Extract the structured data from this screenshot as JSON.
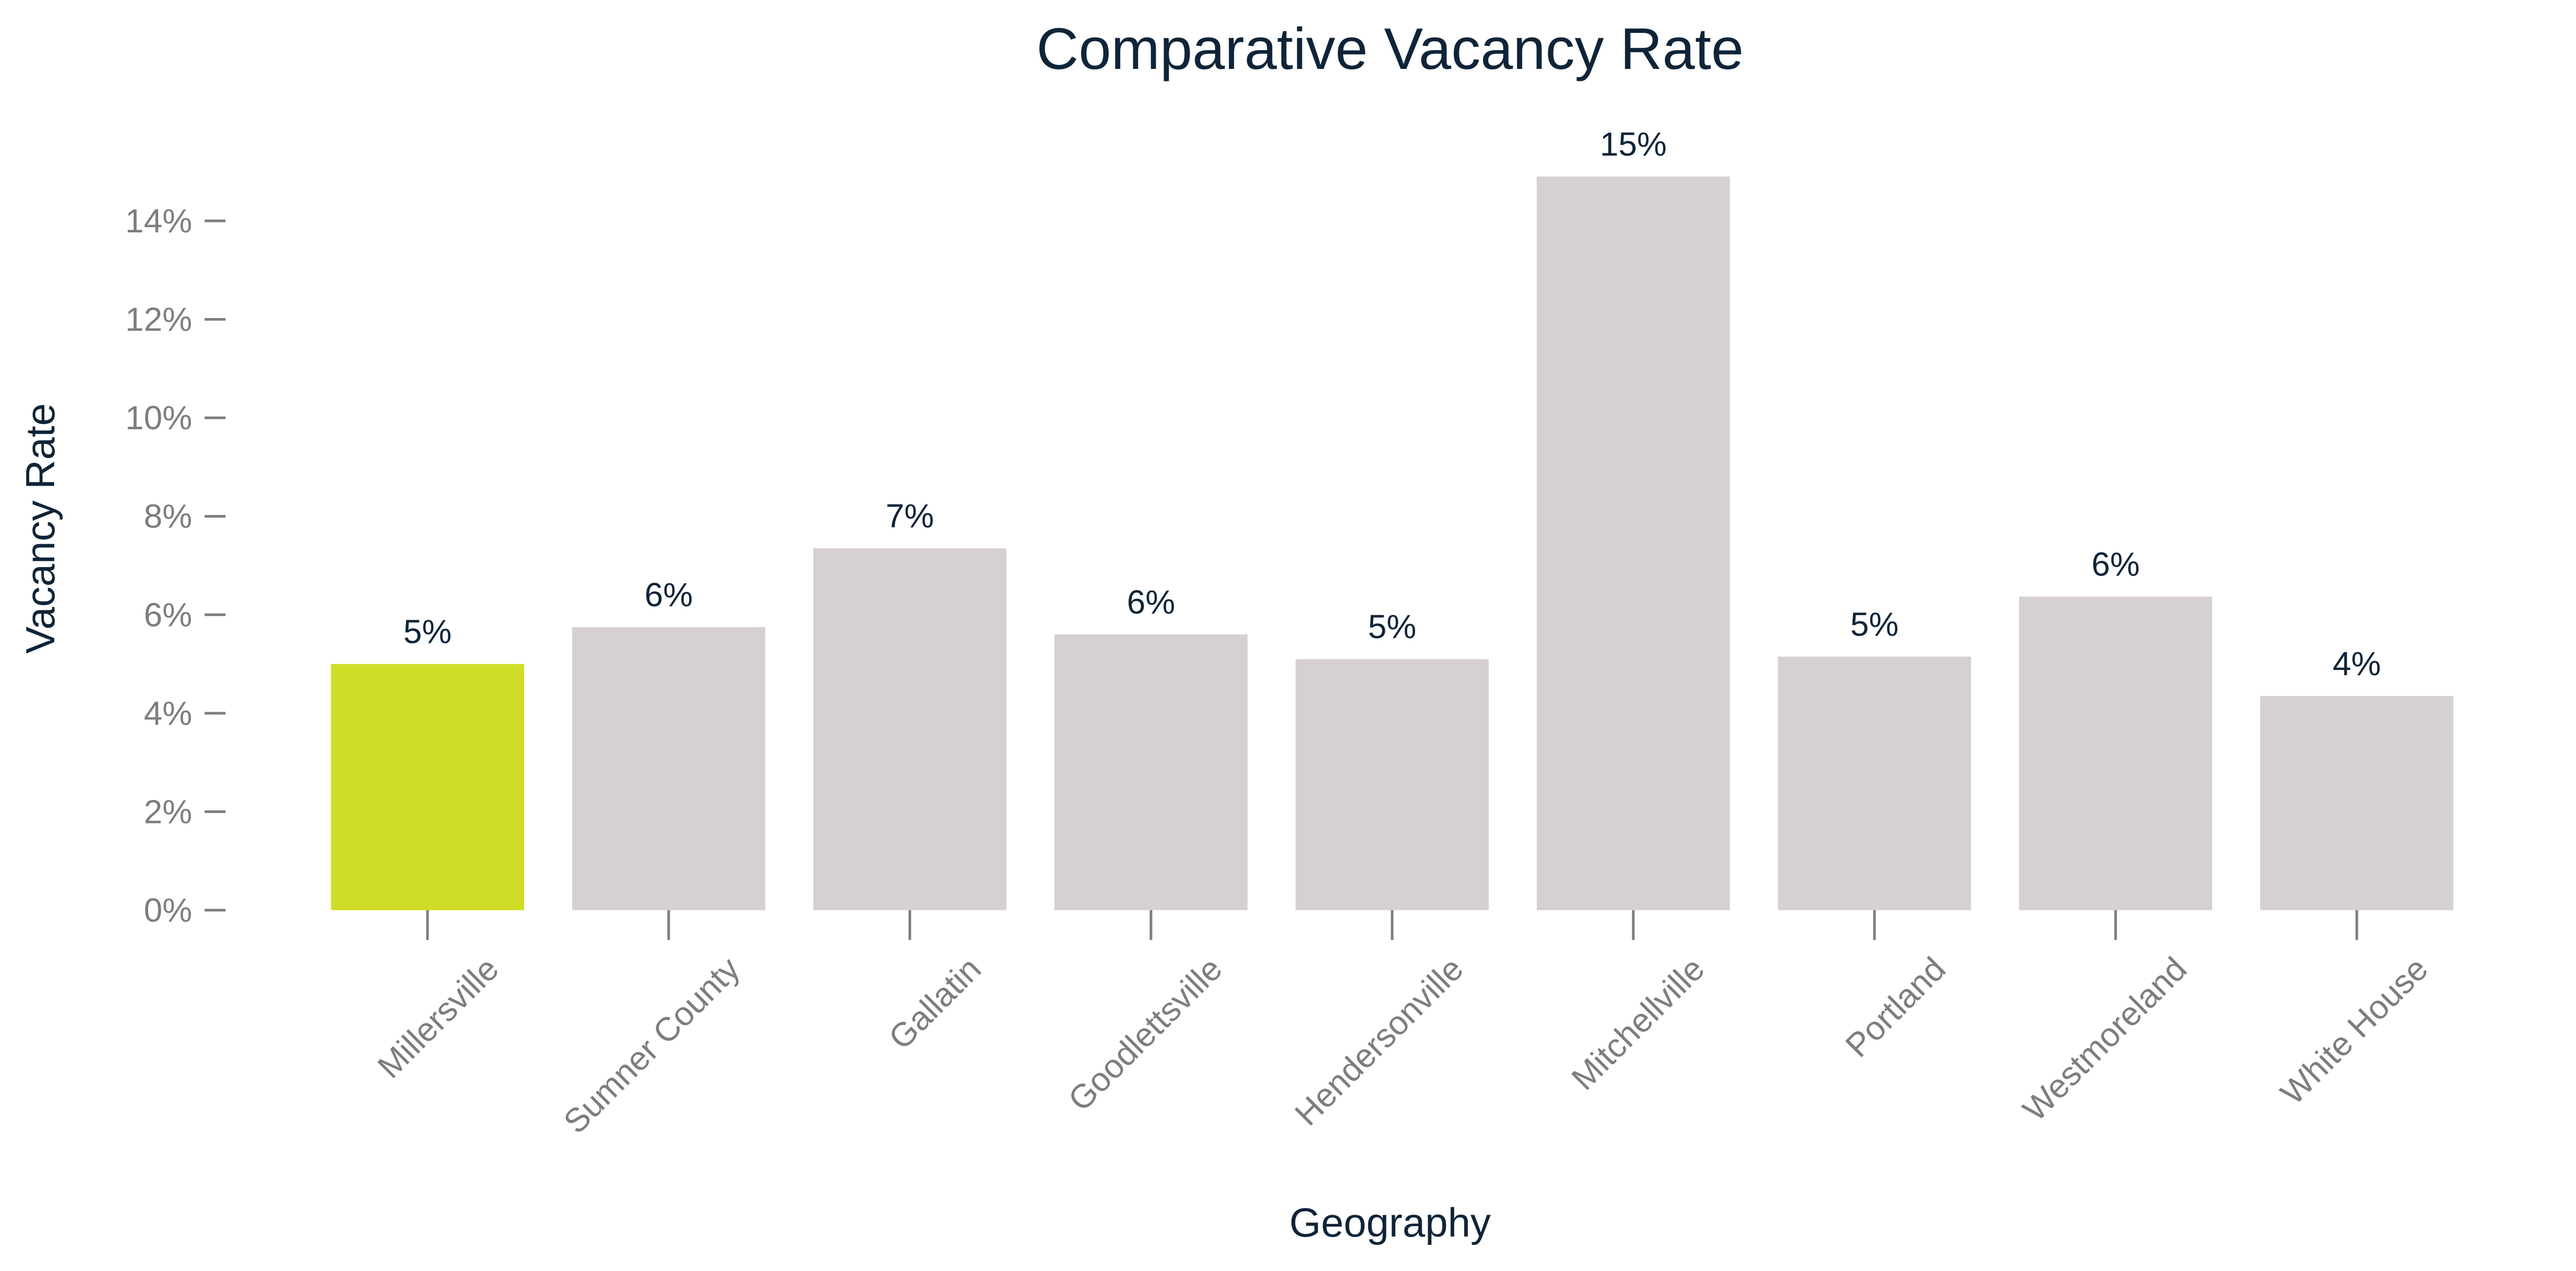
{
  "chart_data": {
    "type": "bar",
    "title": "Comparative Vacancy Rate",
    "xlabel": "Geography",
    "ylabel": "Vacancy Rate",
    "categories": [
      "Millersville",
      "Sumner County",
      "Gallatin",
      "Goodlettsville",
      "Hendersonville",
      "Mitchellville",
      "Portland",
      "Westmoreland",
      "White House"
    ],
    "values": [
      0.05,
      0.0575,
      0.0735,
      0.056,
      0.051,
      0.149,
      0.0515,
      0.0637,
      0.0435
    ],
    "data_labels": [
      "5%",
      "6%",
      "7%",
      "6%",
      "5%",
      "15%",
      "5%",
      "6%",
      "4%"
    ],
    "ylim": [
      0,
      0.14
    ],
    "yticks": [
      0,
      0.02,
      0.04,
      0.06,
      0.08,
      0.1,
      0.12,
      0.14
    ],
    "ytick_labels": [
      "0%",
      "2%",
      "4%",
      "6%",
      "8%",
      "10%",
      "12%",
      "14%"
    ],
    "grid": false,
    "colors": {
      "highlight": "#cfdd28",
      "default": "#d6d0d2",
      "text": "#0f2438",
      "ticks": "#7f7c80"
    },
    "highlight_index": 0
  }
}
